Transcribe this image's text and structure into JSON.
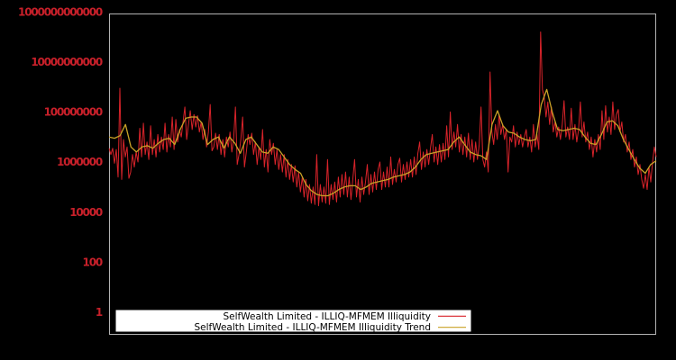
{
  "chart_data": {
    "type": "line",
    "title": "",
    "xlabel": "",
    "ylabel": "",
    "y_scale": "log",
    "ylim": [
      1,
      1000000000000
    ],
    "x_tick_labels": [],
    "grid": false,
    "legend_position": "bottom-inside",
    "y_ticks": [
      {
        "label": "1000000000000",
        "exp": 12
      },
      {
        "label": "10000000000",
        "exp": 10
      },
      {
        "label": "100000000",
        "exp": 8
      },
      {
        "label": "1000000",
        "exp": 6
      },
      {
        "label": "10000",
        "exp": 4
      },
      {
        "label": "100",
        "exp": 2
      },
      {
        "label": "1",
        "exp": 0
      }
    ],
    "series": [
      {
        "name": "SelfWealth Limited - ILLIQ-MFMEM Illiquidity",
        "color": "#d8232a",
        "log10_values": [
          6.55,
          6.3,
          6.55,
          5.95,
          6.5,
          5.4,
          8.95,
          5.3,
          6.9,
          6.2,
          6.6,
          5.35,
          5.6,
          6.3,
          5.8,
          6.4,
          6.0,
          7.35,
          6.2,
          7.55,
          6.3,
          6.8,
          6.1,
          7.45,
          6.3,
          6.9,
          6.2,
          7.1,
          6.4,
          7.0,
          6.5,
          7.55,
          6.4,
          7.1,
          6.6,
          7.8,
          6.5,
          7.7,
          6.8,
          7.3,
          7.0,
          7.6,
          8.2,
          6.9,
          7.5,
          8.05,
          7.3,
          7.9,
          7.4,
          7.85,
          7.2,
          7.6,
          6.9,
          7.3,
          6.6,
          7.2,
          8.3,
          6.45,
          6.6,
          7.15,
          6.5,
          7.1,
          6.3,
          6.9,
          6.2,
          7.0,
          6.6,
          7.2,
          6.4,
          6.9,
          8.2,
          5.9,
          6.3,
          6.9,
          7.8,
          5.8,
          6.4,
          7.1,
          6.7,
          7.15,
          6.3,
          6.8,
          5.9,
          6.6,
          6.1,
          7.3,
          5.8,
          6.5,
          5.6,
          6.9,
          6.3,
          6.75,
          5.9,
          6.5,
          5.7,
          6.3,
          5.6,
          6.3,
          5.4,
          6.1,
          5.3,
          5.9,
          5.2,
          5.85,
          5.0,
          5.6,
          4.8,
          5.4,
          4.6,
          5.3,
          4.45,
          5.1,
          4.35,
          5.0,
          4.3,
          6.3,
          4.25,
          5.1,
          4.4,
          5.0,
          4.35,
          6.1,
          4.3,
          5.1,
          4.5,
          5.2,
          4.4,
          5.4,
          4.6,
          5.5,
          4.7,
          5.6,
          4.6,
          5.4,
          4.5,
          5.3,
          6.1,
          4.6,
          5.3,
          4.4,
          5.4,
          4.7,
          5.2,
          5.9,
          4.7,
          5.5,
          4.8,
          5.6,
          4.9,
          5.7,
          6.0,
          4.9,
          5.6,
          5.0,
          5.8,
          5.0,
          6.2,
          5.1,
          5.7,
          5.2,
          5.9,
          6.15,
          5.2,
          5.9,
          5.3,
          6.0,
          5.4,
          6.1,
          5.4,
          6.2,
          5.5,
          6.35,
          6.8,
          5.7,
          6.4,
          5.8,
          6.5,
          5.9,
          6.55,
          7.1,
          6.0,
          6.6,
          5.9,
          6.7,
          6.0,
          6.75,
          6.1,
          7.45,
          6.2,
          8.0,
          6.5,
          7.2,
          6.6,
          7.5,
          6.4,
          7.1,
          6.3,
          7.0,
          6.2,
          7.15,
          6.1,
          6.9,
          6.0,
          6.8,
          6.1,
          6.7,
          8.2,
          6.1,
          5.8,
          6.4,
          5.6,
          9.6,
          7.2,
          6.7,
          7.5,
          6.9,
          7.9,
          7.1,
          7.5,
          6.9,
          7.3,
          5.6,
          7.0,
          6.8,
          7.45,
          6.6,
          7.2,
          6.7,
          7.1,
          6.6,
          7.0,
          7.3,
          6.6,
          7.0,
          6.4,
          7.5,
          6.6,
          7.1,
          6.5,
          11.2,
          8.9,
          8.6,
          7.8,
          8.4,
          7.5,
          8.2,
          7.2,
          7.6,
          7.0,
          7.4,
          6.9,
          7.5,
          8.45,
          7.0,
          7.4,
          6.9,
          8.15,
          6.9,
          7.5,
          6.8,
          7.3,
          8.4,
          7.0,
          7.6,
          6.8,
          7.2,
          6.5,
          7.0,
          6.2,
          6.9,
          6.4,
          7.1,
          6.5,
          8.05,
          6.9,
          8.25,
          7.2,
          7.8,
          7.1,
          8.4,
          7.3,
          7.9,
          8.1,
          7.2,
          7.6,
          6.8,
          7.1,
          6.4,
          6.8,
          6.1,
          6.5,
          5.8,
          6.2,
          5.5,
          5.9,
          5.3,
          4.95,
          5.5,
          4.9,
          5.8,
          5.2,
          6.0,
          6.6,
          6.2
        ]
      },
      {
        "name": "SelfWealth Limited - ILLIQ-MFMEM Illiquidity Trend",
        "color": "#c9a227",
        "log10_values": [
          7.0,
          6.95,
          7.05,
          7.5,
          6.6,
          6.4,
          6.6,
          6.65,
          6.55,
          6.75,
          6.9,
          6.95,
          6.7,
          7.3,
          7.75,
          7.8,
          7.8,
          7.55,
          6.7,
          6.9,
          7.0,
          6.55,
          7.0,
          6.75,
          6.35,
          6.9,
          7.0,
          6.7,
          6.4,
          6.35,
          6.6,
          6.5,
          6.2,
          5.9,
          5.7,
          5.55,
          5.1,
          4.85,
          4.7,
          4.65,
          4.65,
          4.75,
          4.9,
          5.0,
          5.05,
          5.05,
          4.9,
          5.0,
          5.15,
          5.2,
          5.25,
          5.3,
          5.4,
          5.45,
          5.5,
          5.6,
          5.8,
          6.1,
          6.3,
          6.35,
          6.4,
          6.45,
          6.5,
          6.8,
          7.0,
          6.7,
          6.4,
          6.3,
          6.25,
          6.1,
          7.5,
          8.05,
          7.45,
          7.2,
          7.15,
          7.0,
          6.9,
          6.85,
          6.9,
          8.3,
          8.9,
          8.0,
          7.3,
          7.25,
          7.3,
          7.35,
          7.3,
          7.0,
          6.75,
          6.7,
          7.1,
          7.6,
          7.65,
          7.45,
          6.9,
          6.5,
          6.1,
          5.75,
          5.55,
          5.9,
          6.05
        ]
      }
    ],
    "colors": {
      "background": "#000000",
      "plot_border": "#b3b3b3",
      "tick_label": "#c8202a",
      "legend_background": "#ffffff",
      "legend_text": "#000000"
    }
  }
}
